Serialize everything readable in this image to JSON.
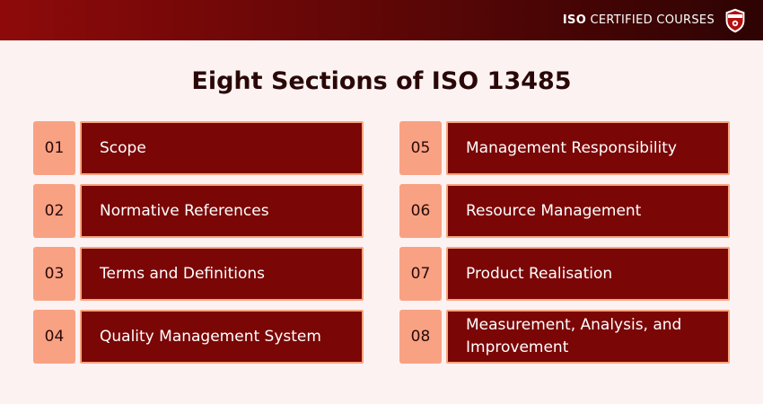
{
  "header": {
    "brand_bold": "ISO",
    "brand_rest": "CERTIFIED COURSES",
    "logo_icon": "shield-logo-icon",
    "bg_start": "#8e0a0a",
    "bg_end": "#2e0303"
  },
  "title": "Eight Sections of ISO 13485",
  "colors": {
    "page_bg": "#fdf2f2",
    "number_box": "#f8a283",
    "label_box": "#7b0606",
    "label_border": "#f7a47e"
  },
  "sections": [
    {
      "number": "01",
      "label": "Scope"
    },
    {
      "number": "05",
      "label": "Management Responsibility"
    },
    {
      "number": "02",
      "label": "Normative References"
    },
    {
      "number": "06",
      "label": "Resource Management"
    },
    {
      "number": "03",
      "label": "Terms and Definitions"
    },
    {
      "number": "07",
      "label": "Product Realisation"
    },
    {
      "number": "04",
      "label": "Quality Management System"
    },
    {
      "number": "08",
      "label": "Measurement, Analysis, and Improvement"
    }
  ]
}
